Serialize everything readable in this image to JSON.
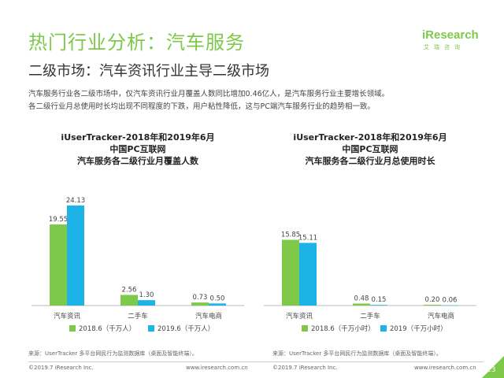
{
  "header": {
    "title": "热门行业分析：汽车服务",
    "logo": {
      "word": "iResearch",
      "sub": "艾瑞咨询"
    }
  },
  "subtitle": "二级市场：汽车资讯行业主导二级市场",
  "body": {
    "line1": "汽车服务行业各二级市场中，仅汽车资讯行业月覆盖人数同比增加0.46亿人，是汽车服务行业主要增长领域。",
    "line2": "各二级行业月总使用时长均出现不同程度的下跌，用户粘性降低，这与PC端汽车服务行业的趋势相一致。"
  },
  "colors": {
    "accent": "#7ec84a",
    "series1": "#7ec84a",
    "series2": "#1eb3e6"
  },
  "chart_data": [
    {
      "type": "bar",
      "title": [
        "iUserTracker-2018年和2019年6月",
        "中国PC互联网",
        "汽车服务各二级行业月覆盖人数"
      ],
      "categories": [
        "汽车资讯",
        "二手车",
        "汽车电商"
      ],
      "series": [
        {
          "name": "2018.6（千万人）",
          "values": [
            19.55,
            2.56,
            0.73
          ]
        },
        {
          "name": "2019.6（千万人）",
          "values": [
            24.13,
            1.3,
            0.5
          ]
        }
      ],
      "ylim": [
        0,
        30
      ],
      "grid": false,
      "legend": "bottom"
    },
    {
      "type": "bar",
      "title": [
        "iUserTracker-2018年和2019年6月",
        "中国PC互联网",
        "汽车服务各二级行业月总使用时长"
      ],
      "categories": [
        "汽车资讯",
        "二手车",
        "汽车电商"
      ],
      "series": [
        {
          "name": "2018.6（千万小时）",
          "values": [
            15.85,
            0.48,
            0.2
          ]
        },
        {
          "name": "2019（千万小时）",
          "values": [
            15.11,
            0.15,
            0.06
          ]
        }
      ],
      "ylim": [
        0,
        30
      ],
      "grid": false,
      "legend": "bottom"
    }
  ],
  "footer": {
    "source1": "来源：UserTracker 多平台网民行为监测数据库（桌面及智能终端）。",
    "source2": "来源：UserTracker 多平台网民行为监测数据库（桌面及智能终端）。",
    "copyright": "©2019.7 iResearch Inc.",
    "website": "www.iresearch.com.cn",
    "page": "23"
  }
}
